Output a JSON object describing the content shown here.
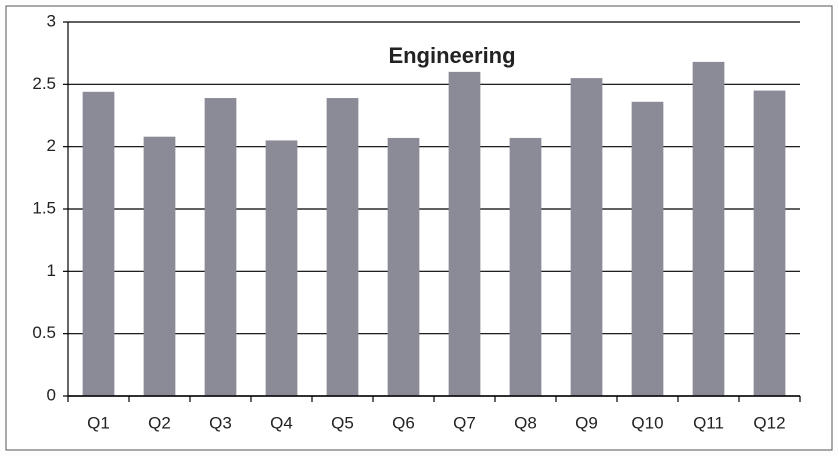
{
  "chart_data": {
    "type": "bar",
    "title": "Engineering",
    "categories": [
      "Q1",
      "Q2",
      "Q3",
      "Q4",
      "Q5",
      "Q6",
      "Q7",
      "Q8",
      "Q9",
      "Q10",
      "Q11",
      "Q12"
    ],
    "values": [
      2.44,
      2.08,
      2.39,
      2.05,
      2.39,
      2.07,
      2.6,
      2.07,
      2.55,
      2.36,
      2.68,
      2.45
    ],
    "color": "#8a8b96",
    "ylim": [
      0,
      3
    ],
    "yticks": [
      0,
      0.5,
      1,
      1.5,
      2,
      2.5,
      3
    ],
    "grid": true
  }
}
